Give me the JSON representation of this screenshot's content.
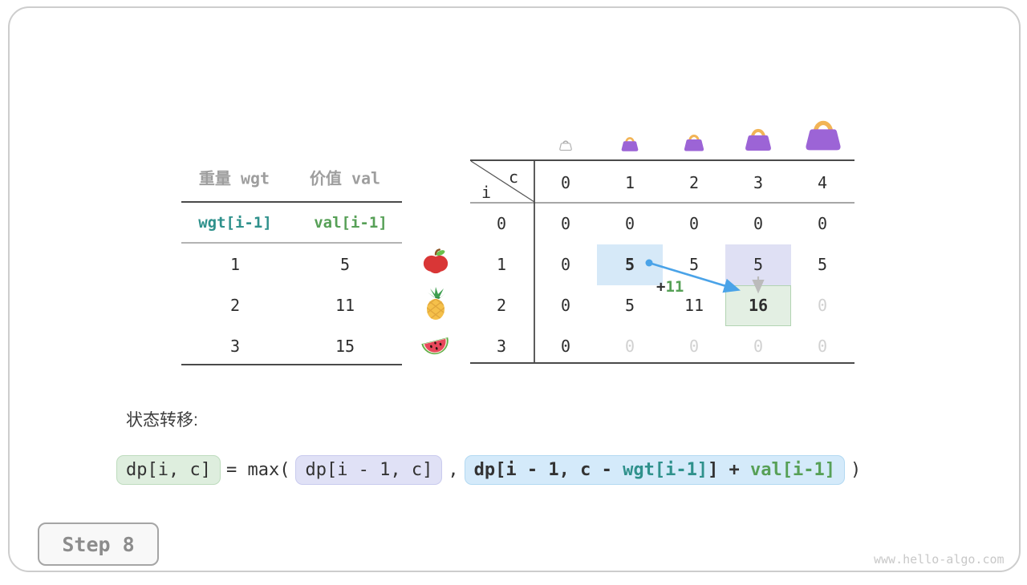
{
  "page": {
    "step_label": "Step 8",
    "watermark": "www.hello-algo.com"
  },
  "items_table": {
    "col1_header": "重量 wgt",
    "col2_header": "价值 val",
    "formula_row": {
      "wgt": "wgt[i-1]",
      "val": "val[i-1]"
    },
    "rows": [
      {
        "weight": "1",
        "value": "5",
        "icon": "apple-icon"
      },
      {
        "weight": "2",
        "value": "11",
        "icon": "pineapple-icon"
      },
      {
        "weight": "3",
        "value": "15",
        "icon": "watermelon-icon"
      }
    ]
  },
  "dp_table": {
    "corner": {
      "row_var": "i",
      "col_var": "c"
    },
    "col_headers": [
      "0",
      "1",
      "2",
      "3",
      "4"
    ],
    "row_headers": [
      "0",
      "1",
      "2",
      "3"
    ],
    "cells": [
      [
        "0",
        "0",
        "0",
        "0",
        "0"
      ],
      [
        "0",
        "5",
        "5",
        "5",
        "5"
      ],
      [
        "0",
        "5",
        "11",
        "16",
        "0"
      ],
      [
        "0",
        "0",
        "0",
        "0",
        "0"
      ]
    ],
    "bold_cells": [
      [
        1,
        1
      ],
      [
        2,
        3
      ]
    ],
    "faded_cells": [
      [
        2,
        4
      ],
      [
        3,
        1
      ],
      [
        3,
        2
      ],
      [
        3,
        3
      ],
      [
        3,
        4
      ]
    ],
    "highlights": [
      {
        "row": 1,
        "col": 1,
        "bg": "#d6e9f8",
        "border": "",
        "name": "source-cell-highlight"
      },
      {
        "row": 1,
        "col": 3,
        "bg": "#dfe0f4",
        "border": "",
        "name": "skip-cell-highlight"
      },
      {
        "row": 2,
        "col": 3,
        "bg": "#e3efe3",
        "border": "#b2d4b2",
        "name": "target-cell-highlight"
      }
    ],
    "annotation": {
      "plus": "+",
      "value": "11"
    },
    "bag_icons": [
      "bag-outline-icon",
      "bag-icon",
      "bag-icon",
      "bag-icon",
      "bag-icon"
    ]
  },
  "transition": {
    "label": "状态转移:",
    "lhs": "dp[i, c]",
    "eq_max": "= max(",
    "arg1": "dp[i - 1, c]",
    "comma": ",",
    "arg2_prefix": "dp[i - 1, c - ",
    "arg2_wgt": "wgt[i-1]",
    "arg2_mid": "] + ",
    "arg2_val": "val[i-1]",
    "close": ")"
  },
  "colors": {
    "accent_arrow_blue": "#4aa3e8",
    "arrow_gray": "#bbbbbb",
    "teal_code": "#2f918c",
    "green_code": "#57a057",
    "highlight_blue": "#d6e9f8",
    "highlight_lavender": "#dfe0f4",
    "highlight_green": "#e3efe3",
    "bag_purple": "#9c64d6",
    "bag_handle_orange": "#f2b456"
  }
}
